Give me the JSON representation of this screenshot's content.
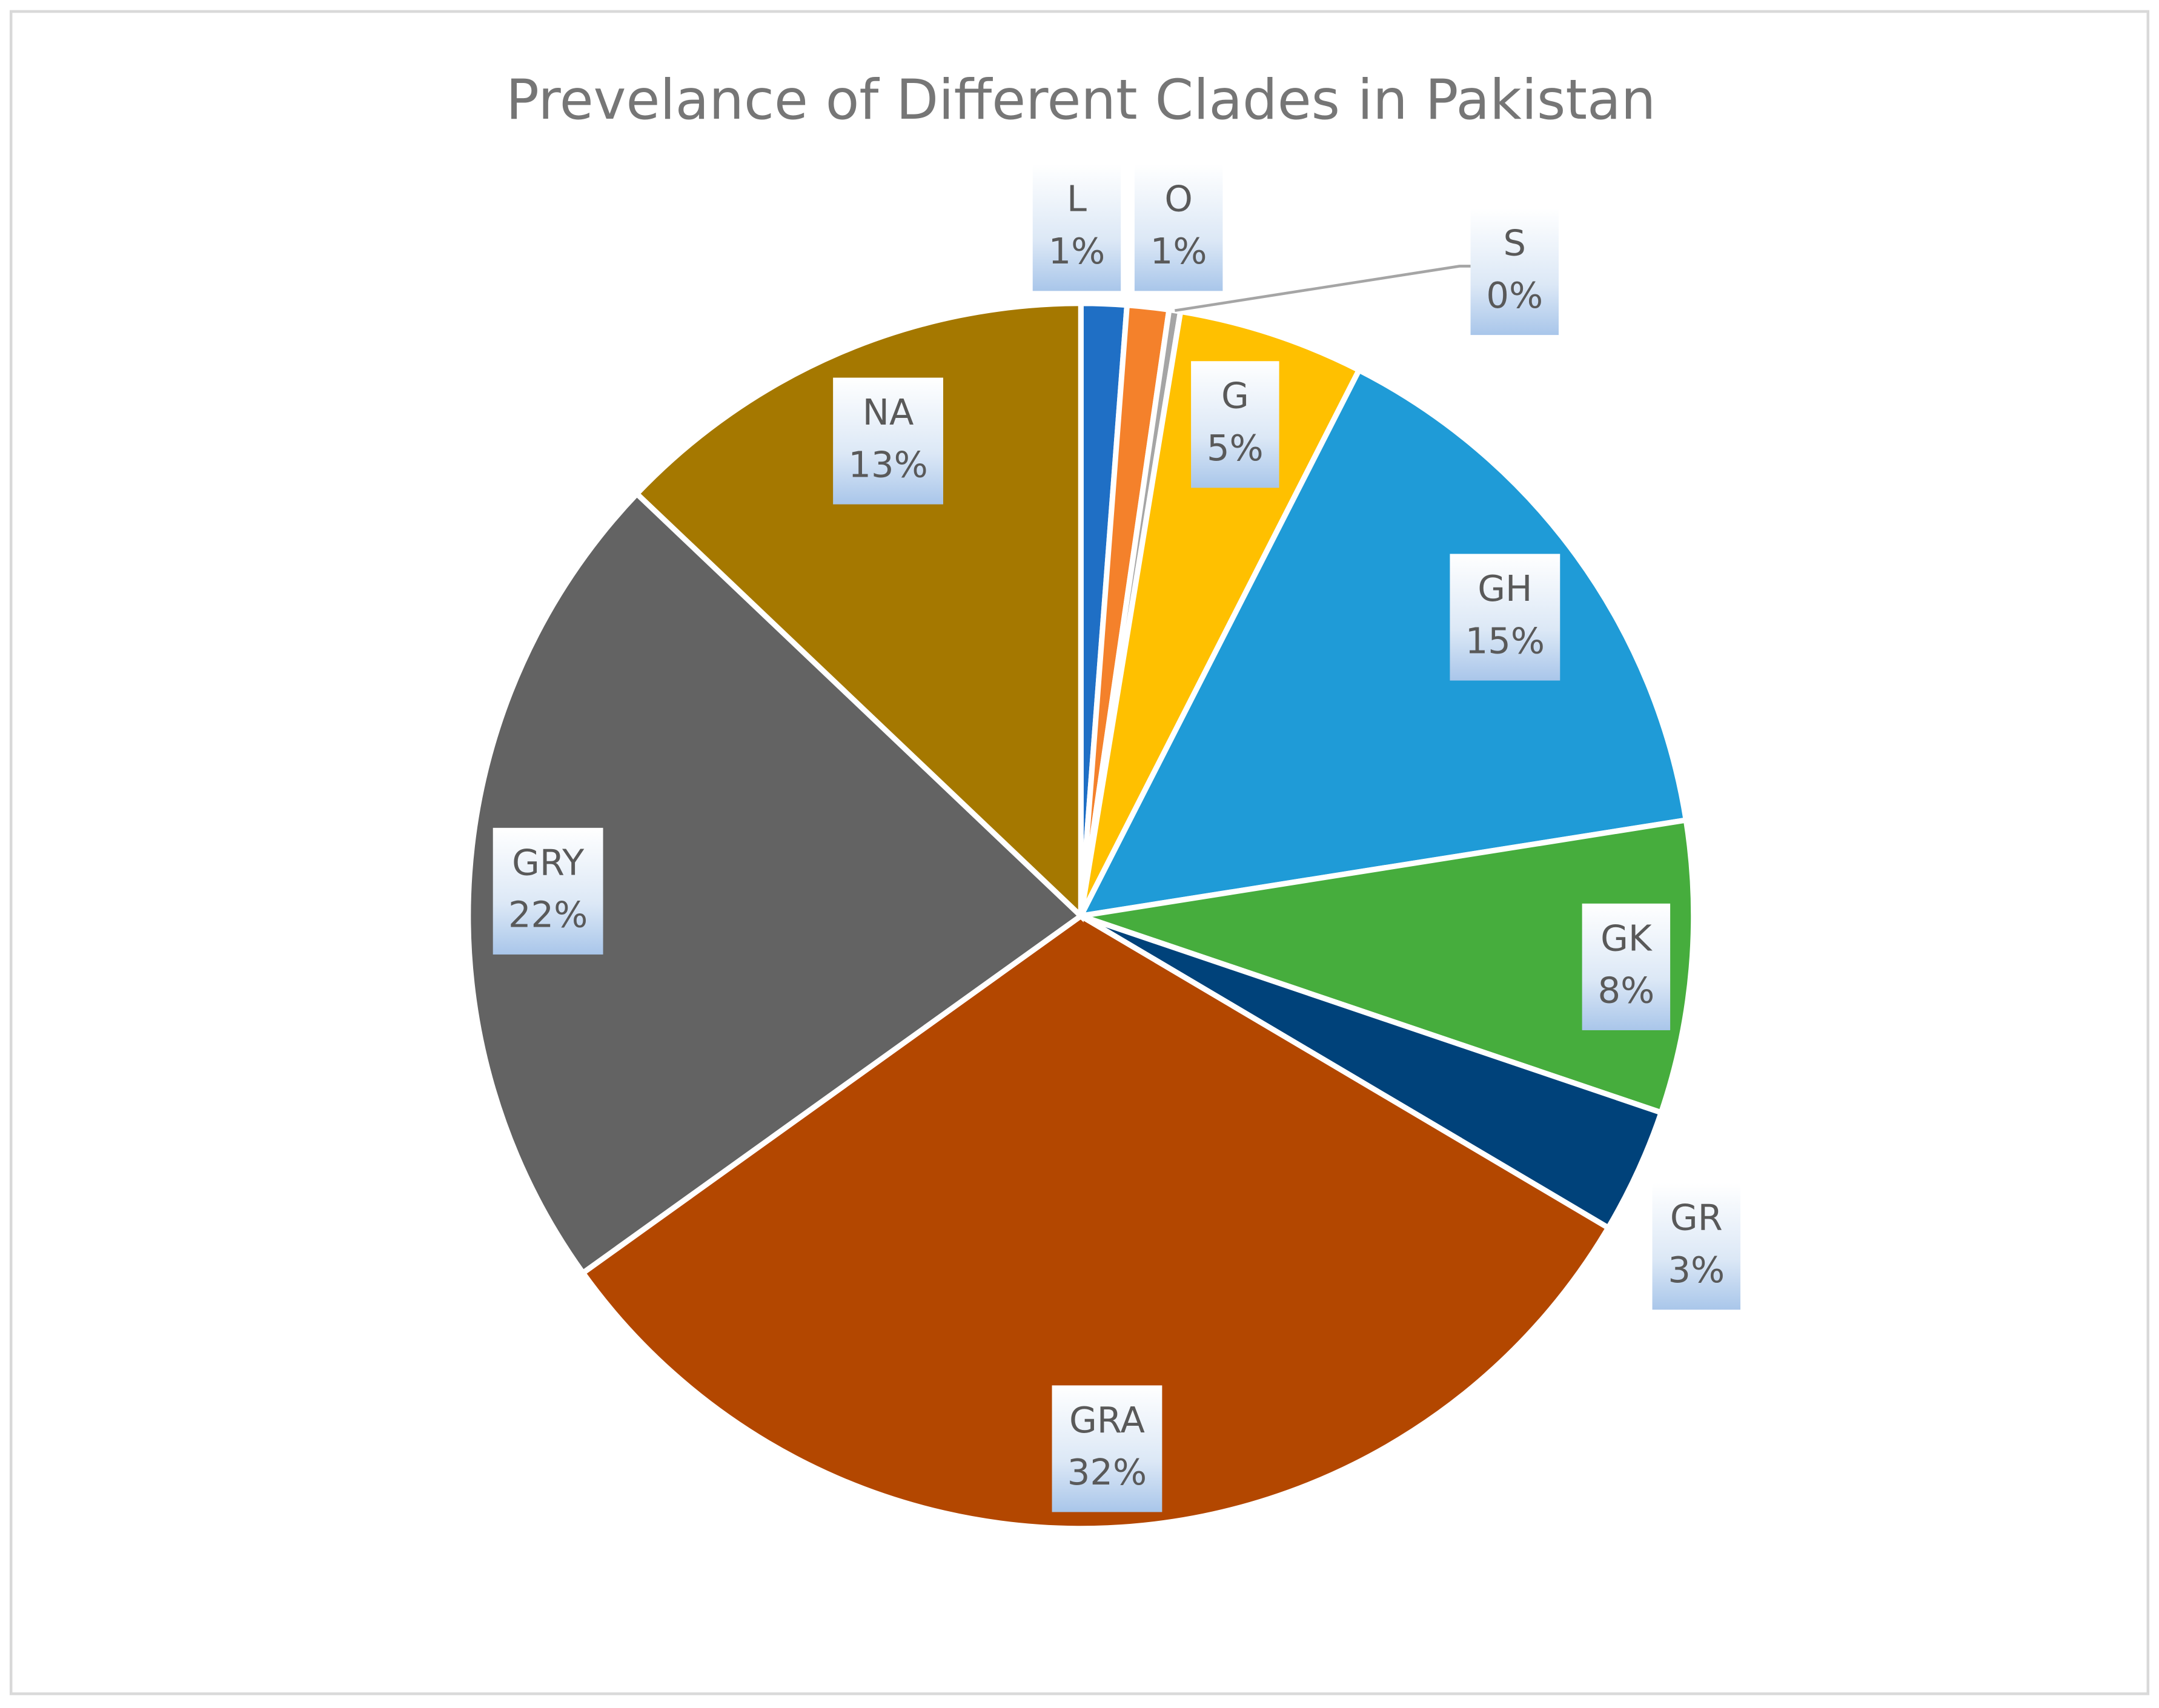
{
  "chart_data": {
    "type": "pie",
    "title": "Prevelance of Different Clades in Pakistan",
    "categories": [
      "L",
      "O",
      "S",
      "G",
      "GH",
      "GK",
      "GR",
      "GRA",
      "GRY",
      "NA"
    ],
    "values": [
      1.2,
      1.1,
      0.3,
      4.9,
      15.0,
      7.7,
      3.3,
      31.6,
      22.0,
      12.9
    ],
    "value_labels": [
      "1%",
      "1%",
      "0%",
      "5%",
      "15%",
      "8%",
      "3%",
      "32%",
      "22%",
      "13%"
    ],
    "colors": [
      "#1f6fc5",
      "#f4812b",
      "#a5a5a5",
      "#ffc000",
      "#1f9bd7",
      "#46ad3d",
      "#00427a",
      "#b34700",
      "#636363",
      "#a57800"
    ]
  }
}
